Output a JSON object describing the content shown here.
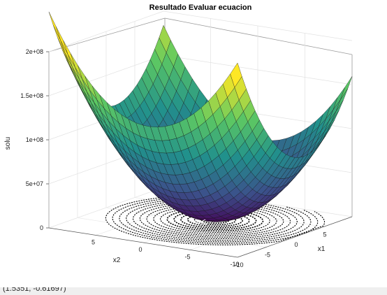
{
  "chart_data": {
    "type": "surface",
    "title": "Resultado Evaluar ecuacion",
    "xlabel": "x1",
    "ylabel": "x2",
    "zlabel": "solu",
    "x_range": [
      -10,
      10
    ],
    "y_range": [
      -10,
      10
    ],
    "zlim": [
      0,
      200000000
    ],
    "x_ticks": [
      "-10",
      "-5",
      "0",
      "5"
    ],
    "y_ticks": [
      "-10",
      "-5",
      "0",
      "5"
    ],
    "z_ticks": [
      "0",
      "5e+07",
      "1e+08",
      "1.5e+08",
      "2e+08"
    ],
    "z_tick_values": [
      0,
      50000000,
      100000000,
      150000000,
      200000000
    ],
    "colormap": "viridis",
    "contour_projection": true,
    "grid": true,
    "minimum": {
      "x1": 1.5351,
      "x2": -0.61697
    }
  },
  "status": {
    "text": "(1.5351, -0.61697)"
  }
}
